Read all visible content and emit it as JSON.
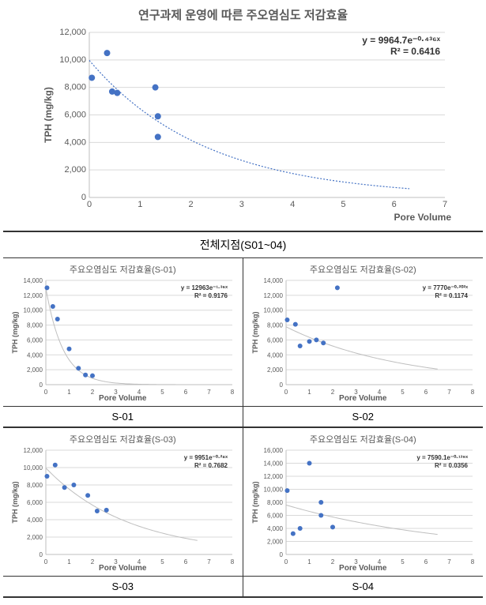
{
  "main_chart": {
    "type": "scatter",
    "title": "연구과제 운영에 따른 주오염심도 저감효율",
    "title_fontsize": 15,
    "xlabel": "Pore Volume",
    "ylabel": "TPH (mg/kg)",
    "label_fontsize": 12,
    "equation": "y = 9964.7e⁻⁰·⁴³⁶ˣ",
    "r2": "R² = 0.6416",
    "eq_fontsize": 12,
    "xlim": [
      0,
      7
    ],
    "xtick_step": 1,
    "ylim": [
      0,
      12000
    ],
    "ytick_step": 2000,
    "tick_fontsize": 11,
    "background_color": "#ffffff",
    "grid_color": "#d9d9d9",
    "axis_color": "#bfbfbf",
    "point_color": "#4472c4",
    "point_radius": 4,
    "fit_color": "#4472c4",
    "fit_dash": "2 2",
    "points": [
      {
        "x": 0.05,
        "y": 8700
      },
      {
        "x": 0.35,
        "y": 10500
      },
      {
        "x": 0.45,
        "y": 7700
      },
      {
        "x": 0.55,
        "y": 7600
      },
      {
        "x": 1.3,
        "y": 8000
      },
      {
        "x": 1.35,
        "y": 5900
      },
      {
        "x": 1.35,
        "y": 4400
      }
    ],
    "fit": {
      "a": 9964.7,
      "b": 0.436,
      "xmax": 6.3
    }
  },
  "section_label": "전체지점(S01~04)",
  "sub_charts": [
    {
      "id": "s01",
      "type": "scatter",
      "title": "주요오염심도 저감효율(S-01)",
      "label": "S-01",
      "xlabel": "Pore Volume",
      "ylabel": "TPH (mg/kg)",
      "equation": "y = 12963e⁻¹·³⁶ˣ",
      "r2": "R² = 0.9176",
      "xlim": [
        0,
        8
      ],
      "xtick_step": 1,
      "ylim": [
        0,
        14000
      ],
      "ytick_step": 2000,
      "point_color": "#4472c4",
      "point_radius": 3,
      "fit_color": "#bfbfbf",
      "fit_dash": "none",
      "points": [
        {
          "x": 0.05,
          "y": 13000
        },
        {
          "x": 0.3,
          "y": 10500
        },
        {
          "x": 0.5,
          "y": 8800
        },
        {
          "x": 1.0,
          "y": 4800
        },
        {
          "x": 1.4,
          "y": 2200
        },
        {
          "x": 1.7,
          "y": 1300
        },
        {
          "x": 2.0,
          "y": 1200
        }
      ],
      "fit": {
        "a": 12963,
        "b": 1.36,
        "xmax": 6.5
      }
    },
    {
      "id": "s02",
      "type": "scatter",
      "title": "주요오염심도 저감효율(S-02)",
      "label": "S-02",
      "xlabel": "Pore Volume",
      "ylabel": "TPH (mg/kg)",
      "equation": "y = 7770e⁻⁰·²⁰²ˣ",
      "r2": "R² = 0.1174",
      "xlim": [
        0,
        8
      ],
      "xtick_step": 1,
      "ylim": [
        0,
        14000
      ],
      "ytick_step": 2000,
      "point_color": "#4472c4",
      "point_radius": 3,
      "fit_color": "#bfbfbf",
      "fit_dash": "none",
      "points": [
        {
          "x": 0.05,
          "y": 8700
        },
        {
          "x": 0.4,
          "y": 8100
        },
        {
          "x": 0.6,
          "y": 5200
        },
        {
          "x": 1.0,
          "y": 5800
        },
        {
          "x": 1.3,
          "y": 6000
        },
        {
          "x": 1.6,
          "y": 5600
        },
        {
          "x": 2.2,
          "y": 13000
        }
      ],
      "fit": {
        "a": 7770,
        "b": 0.202,
        "xmax": 6.5
      }
    },
    {
      "id": "s03",
      "type": "scatter",
      "title": "주요오염심도 저감효율(S-03)",
      "label": "S-03",
      "xlabel": "Pore Volume",
      "ylabel": "TPH (mg/kg)",
      "equation": "y = 9951e⁻⁰·²⁸ˣ",
      "r2": "R² = 0.7682",
      "xlim": [
        0,
        8
      ],
      "xtick_step": 1,
      "ylim": [
        0,
        12000
      ],
      "ytick_step": 2000,
      "point_color": "#4472c4",
      "point_radius": 3,
      "fit_color": "#bfbfbf",
      "fit_dash": "none",
      "points": [
        {
          "x": 0.05,
          "y": 9000
        },
        {
          "x": 0.4,
          "y": 10300
        },
        {
          "x": 0.8,
          "y": 7700
        },
        {
          "x": 1.2,
          "y": 8000
        },
        {
          "x": 1.8,
          "y": 6800
        },
        {
          "x": 2.2,
          "y": 5000
        },
        {
          "x": 2.6,
          "y": 5100
        }
      ],
      "fit": {
        "a": 9951,
        "b": 0.28,
        "xmax": 6.5
      }
    },
    {
      "id": "s04",
      "type": "scatter",
      "title": "주요오염심도 저감효율(S-04)",
      "label": "S-04",
      "xlabel": "Pore Volume",
      "ylabel": "TPH (mg/kg)",
      "equation": "y = 7590.1e⁻⁰·¹³⁹ˣ",
      "r2": "R² = 0.0356",
      "xlim": [
        0,
        8
      ],
      "xtick_step": 1,
      "ylim": [
        0,
        16000
      ],
      "ytick_step": 2000,
      "point_color": "#4472c4",
      "point_radius": 3,
      "fit_color": "#bfbfbf",
      "fit_dash": "none",
      "points": [
        {
          "x": 0.05,
          "y": 9800
        },
        {
          "x": 0.3,
          "y": 3200
        },
        {
          "x": 0.6,
          "y": 4000
        },
        {
          "x": 1.0,
          "y": 14000
        },
        {
          "x": 1.5,
          "y": 8000
        },
        {
          "x": 1.5,
          "y": 6000
        },
        {
          "x": 2.0,
          "y": 4200
        }
      ],
      "fit": {
        "a": 7590.1,
        "b": 0.139,
        "xmax": 6.5
      }
    }
  ]
}
